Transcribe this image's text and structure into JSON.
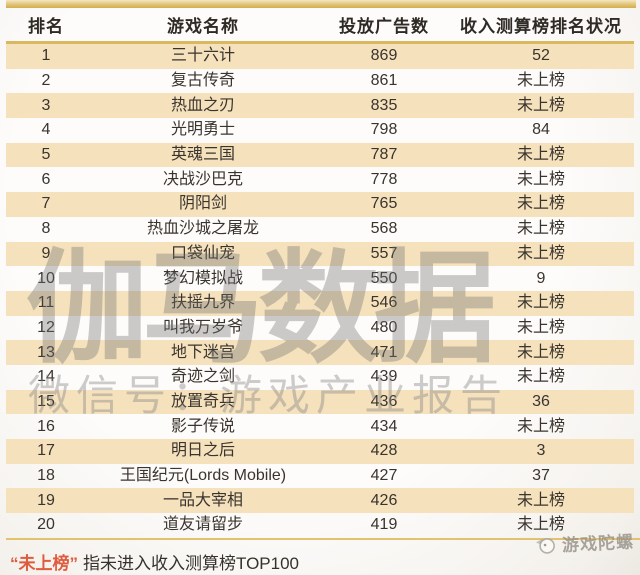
{
  "colors": {
    "accent_gold": "#D9B860",
    "row_stripe": "#F5E2BD",
    "footnote_red": "#DE5B3E",
    "text_dark": "#3A342E",
    "watermark_gray": "#9A9A9A",
    "logo_gray": "#A19A92"
  },
  "chart_data": {
    "type": "table",
    "title": "",
    "columns": [
      "排名",
      "游戏名称",
      "投放广告数",
      "收入测算榜排名状况"
    ],
    "rows": [
      [
        "1",
        "三十六计",
        "869",
        "52"
      ],
      [
        "2",
        "复古传奇",
        "861",
        "未上榜"
      ],
      [
        "3",
        "热血之刃",
        "835",
        "未上榜"
      ],
      [
        "4",
        "光明勇士",
        "798",
        "84"
      ],
      [
        "5",
        "英魂三国",
        "787",
        "未上榜"
      ],
      [
        "6",
        "决战沙巴克",
        "778",
        "未上榜"
      ],
      [
        "7",
        "阴阳剑",
        "765",
        "未上榜"
      ],
      [
        "8",
        "热血沙城之屠龙",
        "568",
        "未上榜"
      ],
      [
        "9",
        "口袋仙宠",
        "557",
        "未上榜"
      ],
      [
        "10",
        "梦幻模拟战",
        "550",
        "9"
      ],
      [
        "11",
        "扶摇九界",
        "546",
        "未上榜"
      ],
      [
        "12",
        "叫我万岁爷",
        "480",
        "未上榜"
      ],
      [
        "13",
        "地下迷宫",
        "471",
        "未上榜"
      ],
      [
        "14",
        "奇迹之剑",
        "439",
        "未上榜"
      ],
      [
        "15",
        "放置奇兵",
        "436",
        "36"
      ],
      [
        "16",
        "影子传说",
        "434",
        "未上榜"
      ],
      [
        "17",
        "明日之后",
        "428",
        "3"
      ],
      [
        "18",
        "王国纪元(Lords Mobile)",
        "427",
        "37"
      ],
      [
        "19",
        "一品大宰相",
        "426",
        "未上榜"
      ],
      [
        "20",
        "道友请留步",
        "419",
        "未上榜"
      ]
    ],
    "not_listed_label": "未上榜",
    "legend_position": "none",
    "grid": "striped-rows"
  },
  "watermarks": {
    "main": "伽马数据",
    "sub": "微信号：游戏产业报告"
  },
  "footnote": {
    "term": "“未上榜”",
    "text": "指未进入收入测算榜TOP100"
  },
  "logo": {
    "text": "游戏陀螺"
  }
}
